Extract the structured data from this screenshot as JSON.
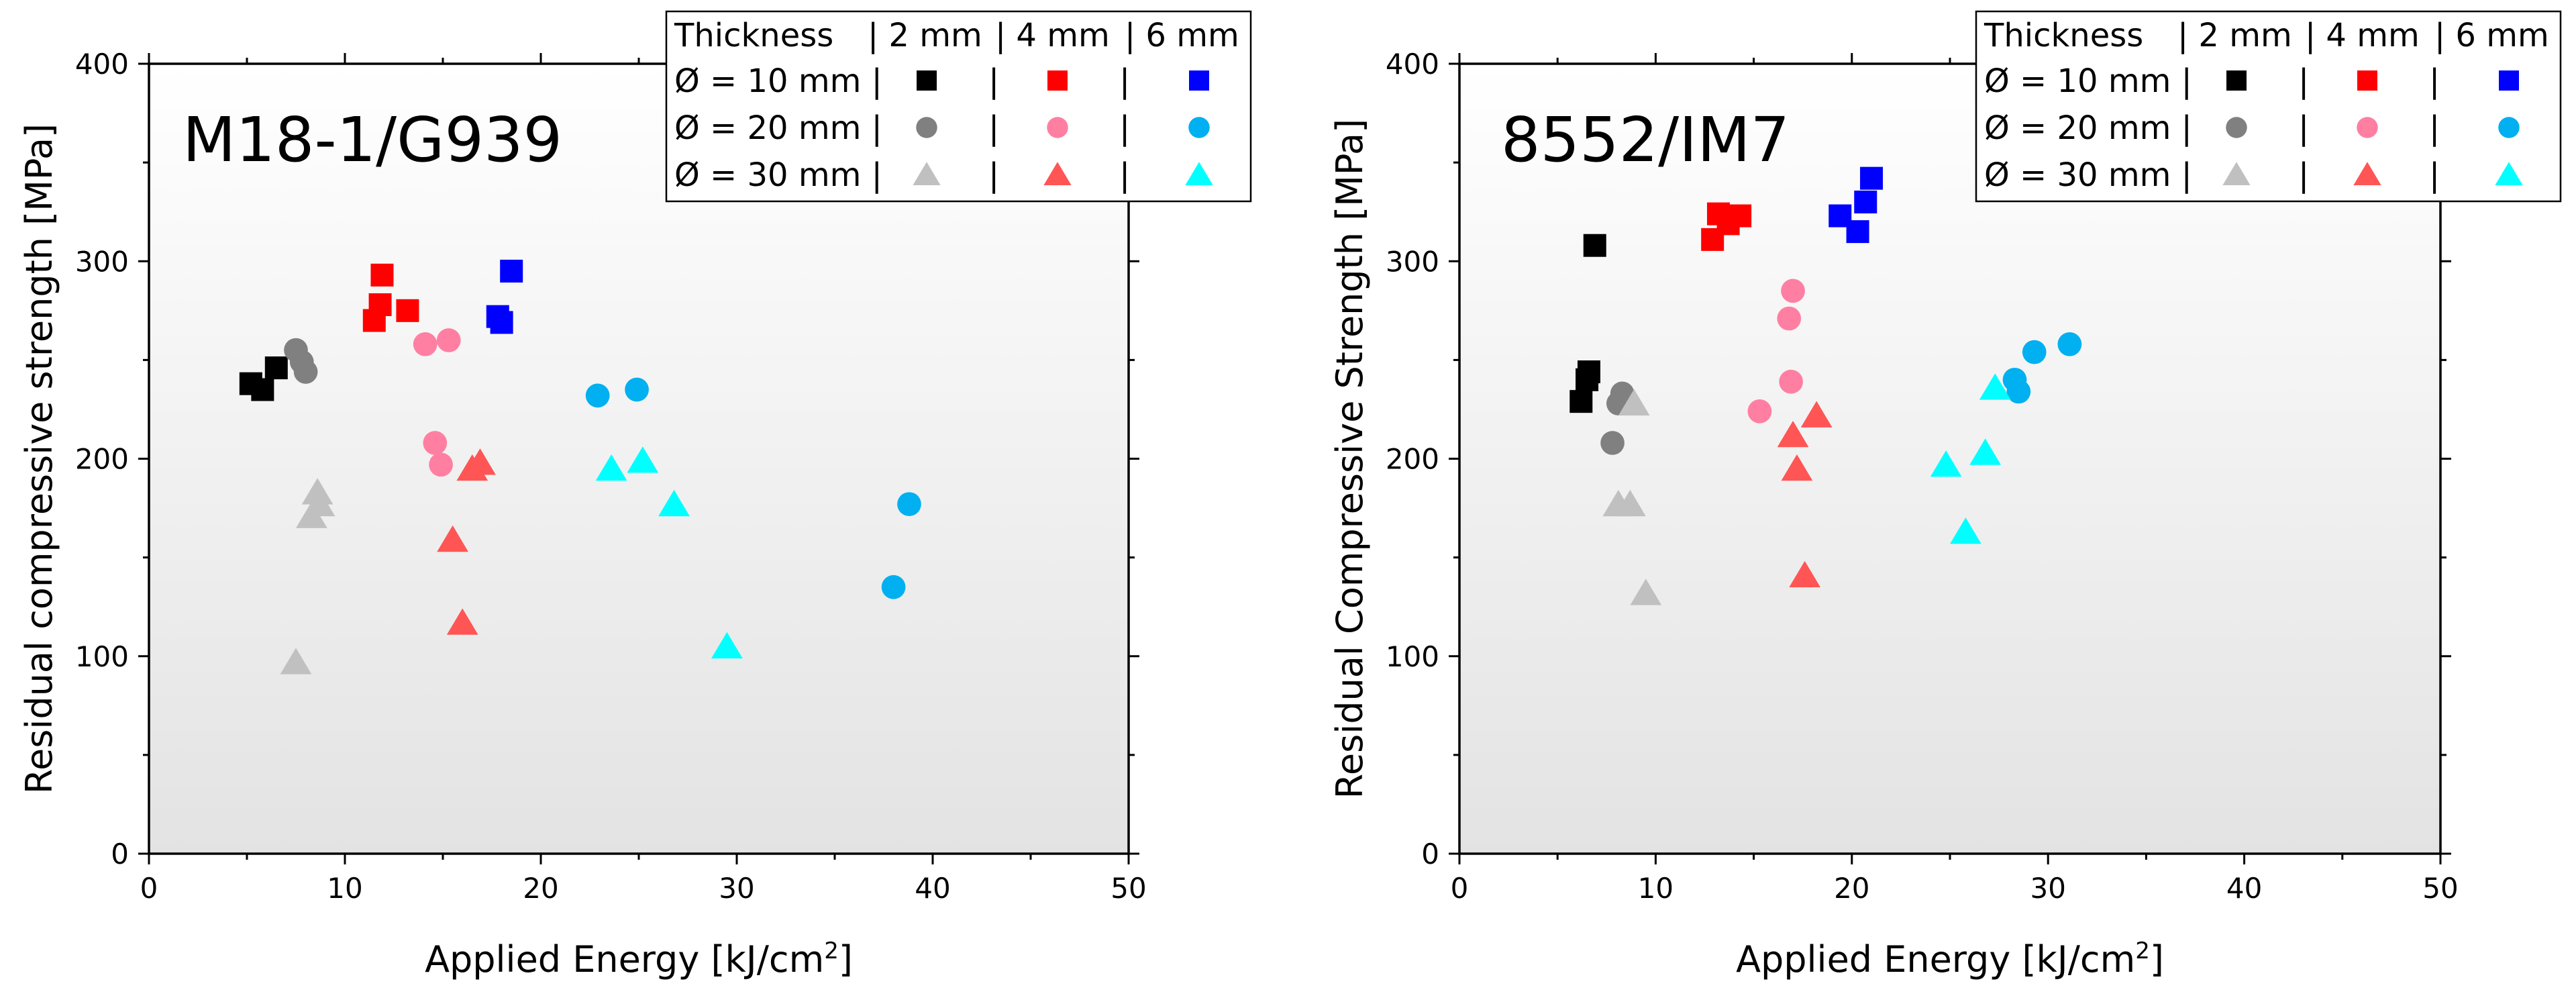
{
  "chart_data": [
    {
      "type": "scatter",
      "panel_label": "M18-1/G939",
      "xlabel_main": "Applied Energy [kJ/cm",
      "xlabel_sup": "2",
      "xlabel_tail": "]",
      "ylabel": "Residual compressive strength [MPa]",
      "xlim": [
        0,
        50
      ],
      "ylim": [
        0,
        400
      ],
      "xticks": [
        0,
        10,
        20,
        30,
        40,
        50
      ],
      "yticks": [
        0,
        100,
        200,
        300,
        400
      ],
      "grid": false,
      "legend_position": "top-right",
      "series": [
        {
          "name": "Ø = 10 mm | 2 mm",
          "marker": "square",
          "color": "#000000",
          "points": [
            [
              5.2,
              238
            ],
            [
              5.8,
              235
            ],
            [
              6.5,
              246
            ]
          ]
        },
        {
          "name": "Ø = 10 mm | 4 mm",
          "marker": "square",
          "color": "#ff0000",
          "points": [
            [
              11.5,
              270
            ],
            [
              11.8,
              278
            ],
            [
              11.9,
              293
            ],
            [
              13.2,
              275
            ]
          ]
        },
        {
          "name": "Ø = 10 mm | 6 mm",
          "marker": "square",
          "color": "#0000ff",
          "points": [
            [
              17.8,
              272
            ],
            [
              18.0,
              269
            ],
            [
              18.5,
              295
            ]
          ]
        },
        {
          "name": "Ø = 20 mm | 2 mm",
          "marker": "circle",
          "color": "#808080",
          "points": [
            [
              7.5,
              255
            ],
            [
              7.8,
              249
            ],
            [
              8.0,
              244
            ]
          ]
        },
        {
          "name": "Ø = 20 mm | 4 mm",
          "marker": "circle",
          "color": "#ff7fa3",
          "points": [
            [
              14.1,
              258
            ],
            [
              15.3,
              260
            ],
            [
              14.6,
              208
            ],
            [
              14.9,
              197
            ]
          ]
        },
        {
          "name": "Ø = 20 mm | 6 mm",
          "marker": "circle",
          "color": "#00b0f0",
          "points": [
            [
              22.9,
              232
            ],
            [
              24.9,
              235
            ],
            [
              38.0,
              135
            ],
            [
              38.8,
              177
            ]
          ]
        },
        {
          "name": "Ø = 30 mm | 2 mm",
          "marker": "triangle",
          "color": "#c0c0c0",
          "points": [
            [
              7.5,
              97
            ],
            [
              8.3,
              171
            ],
            [
              8.6,
              183
            ],
            [
              8.7,
              177
            ]
          ]
        },
        {
          "name": "Ø = 30 mm | 4 mm",
          "marker": "triangle",
          "color": "#ff5555",
          "points": [
            [
              15.5,
              159
            ],
            [
              16.0,
              117
            ],
            [
              16.5,
              195
            ],
            [
              16.9,
              198
            ]
          ]
        },
        {
          "name": "Ø = 30 mm | 6 mm",
          "marker": "triangle",
          "color": "#00ffff",
          "points": [
            [
              23.6,
              195
            ],
            [
              25.2,
              199
            ],
            [
              26.8,
              177
            ],
            [
              29.5,
              105
            ]
          ]
        }
      ]
    },
    {
      "type": "scatter",
      "panel_label": "8552/IM7",
      "xlabel_main": "Applied Energy [kJ/cm",
      "xlabel_sup": "2",
      "xlabel_tail": "]",
      "ylabel": "Residual Compressive Strength [MPa]",
      "xlim": [
        0,
        50
      ],
      "ylim": [
        0,
        400
      ],
      "xticks": [
        0,
        10,
        20,
        30,
        40,
        50
      ],
      "yticks": [
        0,
        100,
        200,
        300,
        400
      ],
      "grid": false,
      "legend_position": "top-right",
      "series": [
        {
          "name": "Ø = 10 mm | 2 mm",
          "marker": "square",
          "color": "#000000",
          "points": [
            [
              6.2,
              229
            ],
            [
              6.5,
              240
            ],
            [
              6.6,
              244
            ],
            [
              6.9,
              308
            ]
          ]
        },
        {
          "name": "Ø = 10 mm | 4 mm",
          "marker": "square",
          "color": "#ff0000",
          "points": [
            [
              12.9,
              311
            ],
            [
              13.2,
              324
            ],
            [
              13.7,
              319
            ],
            [
              14.3,
              323
            ]
          ]
        },
        {
          "name": "Ø = 10 mm | 6 mm",
          "marker": "square",
          "color": "#0000ff",
          "points": [
            [
              19.4,
              323
            ],
            [
              20.3,
              315
            ],
            [
              20.7,
              330
            ],
            [
              21.0,
              342
            ]
          ]
        },
        {
          "name": "Ø = 20 mm | 2 mm",
          "marker": "circle",
          "color": "#808080",
          "points": [
            [
              7.8,
              208
            ],
            [
              8.1,
              228
            ],
            [
              8.3,
              233
            ]
          ]
        },
        {
          "name": "Ø = 20 mm | 4 mm",
          "marker": "circle",
          "color": "#ff7fa3",
          "points": [
            [
              15.3,
              224
            ],
            [
              16.8,
              271
            ],
            [
              16.9,
              239
            ],
            [
              17.0,
              285
            ]
          ]
        },
        {
          "name": "Ø = 20 mm | 6 mm",
          "marker": "circle",
          "color": "#00b0f0",
          "points": [
            [
              28.3,
              240
            ],
            [
              28.5,
              234
            ],
            [
              29.3,
              254
            ],
            [
              31.1,
              258
            ]
          ]
        },
        {
          "name": "Ø = 30 mm | 2 mm",
          "marker": "triangle",
          "color": "#c0c0c0",
          "points": [
            [
              8.1,
              177
            ],
            [
              8.7,
              177
            ],
            [
              8.9,
              228
            ],
            [
              9.5,
              132
            ]
          ]
        },
        {
          "name": "Ø = 30 mm | 4 mm",
          "marker": "triangle",
          "color": "#ff5555",
          "points": [
            [
              17.0,
              212
            ],
            [
              17.2,
              195
            ],
            [
              17.6,
              141
            ],
            [
              18.2,
              222
            ]
          ]
        },
        {
          "name": "Ø = 30 mm | 6 mm",
          "marker": "triangle",
          "color": "#00ffff",
          "points": [
            [
              24.8,
              197
            ],
            [
              25.8,
              163
            ],
            [
              26.8,
              203
            ],
            [
              27.3,
              236
            ]
          ]
        }
      ]
    }
  ],
  "legend": {
    "header": [
      "Thickness",
      "| 2 mm",
      "| 4 mm",
      "| 6 mm"
    ],
    "rows": [
      {
        "label": "Ø = 10 mm |",
        "marker": "square",
        "colors": [
          "#000000",
          "#ff0000",
          "#0000ff"
        ]
      },
      {
        "label": "Ø = 20 mm |",
        "marker": "circle",
        "colors": [
          "#808080",
          "#ff7fa3",
          "#00b0f0"
        ]
      },
      {
        "label": "Ø = 30 mm |",
        "marker": "triangle",
        "colors": [
          "#c0c0c0",
          "#ff5555",
          "#00ffff"
        ]
      }
    ],
    "separator": "|"
  }
}
